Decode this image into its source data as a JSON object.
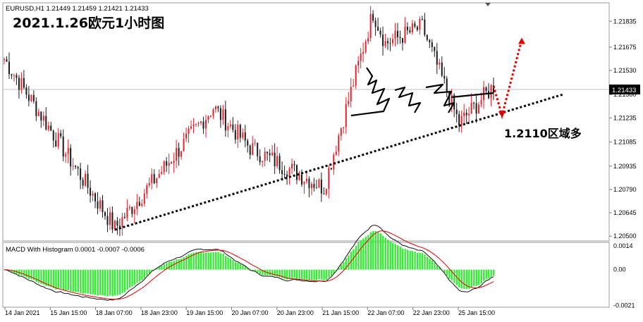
{
  "header": {
    "symbol_line": "EURUSD,H1  1.21449 1.21459 1.21421 1.21433",
    "big_title": "2021.1.26欧元1小时图"
  },
  "annotations": {
    "zone_label": "1.2110区域多"
  },
  "colors": {
    "bull": "#e8202a",
    "bear": "#1a1a1a",
    "macd_hist": "#33ee33",
    "macd_line": "#111111",
    "signal_line": "#e00000",
    "trendline": "#000000",
    "arrow": "#e00000"
  },
  "chart_data": [
    {
      "type": "candlestick",
      "title": "EURUSD,H1",
      "current_price_label": "1.21433",
      "y_ticks": [
        "1.21835",
        "1.21675",
        "1.21530",
        "1.21380",
        "1.21235",
        "1.21085",
        "1.20935",
        "1.20790",
        "1.20645",
        "1.20500"
      ],
      "x_ticks": [
        "14 Jan 2021",
        "15 Jan 15:00",
        "18 Jan 07:00",
        "18 Jan 23:00",
        "19 Jan 15:00",
        "20 Jan 07:00",
        "20 Jan 23:00",
        "21 Jan 15:00",
        "22 Jan 07:00",
        "22 Jan 23:00",
        "25 Jan 15:00"
      ],
      "ylim": [
        1.2047,
        1.2195
      ],
      "key_prices": [
        {
          "label": "start",
          "price": 1.216
        },
        {
          "label": "low_18Jan",
          "price": 1.2055
        },
        {
          "label": "rebound",
          "price": 1.213
        },
        {
          "label": "pullback_20Jan",
          "price": 1.208
        },
        {
          "label": "high_21Jan",
          "price": 1.2189
        },
        {
          "label": "range_high_22Jan",
          "price": 1.218
        },
        {
          "label": "dip_25Jan",
          "price": 1.212
        },
        {
          "label": "last",
          "price": 1.21433
        }
      ],
      "trendline": {
        "from_price": 1.2054,
        "to_price": 1.2138
      },
      "projection": {
        "dip_to": 1.2125,
        "target": 1.2172
      }
    },
    {
      "type": "macd",
      "title": "MACD With Histogram 0.0001 -0.0007 -0.0006",
      "y_ticks": [
        "0.0014",
        "0.00",
        "-0.0021"
      ],
      "ylim": [
        -0.0022,
        0.0016
      ]
    }
  ]
}
